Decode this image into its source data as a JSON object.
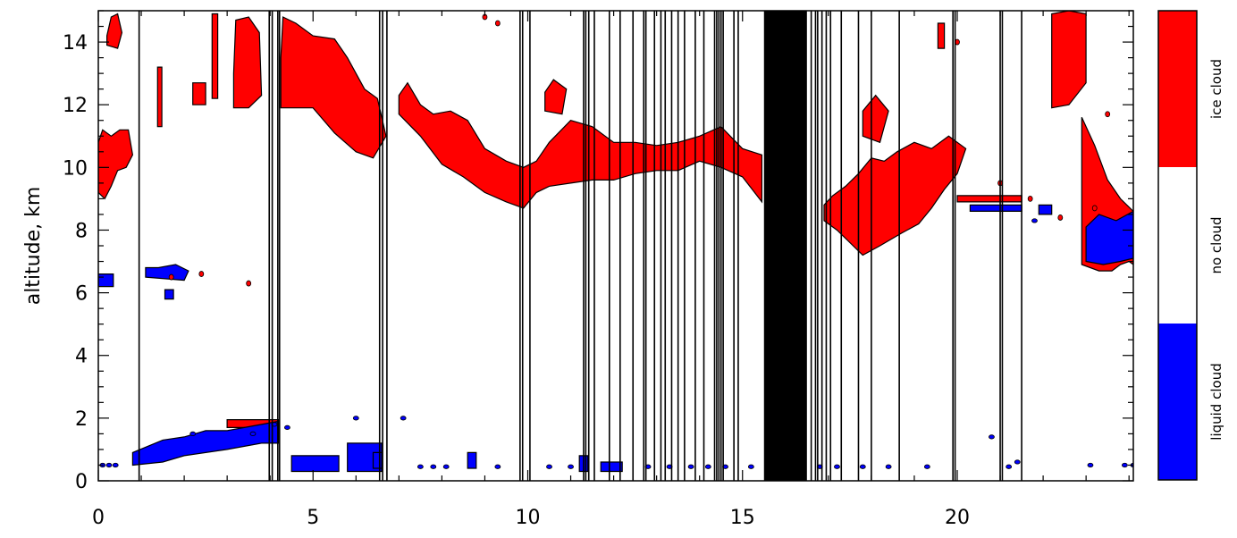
{
  "chart_data": {
    "type": "heatmap",
    "title": "",
    "xlabel": "",
    "ylabel": "altitude, km",
    "xlim": [
      0,
      24.1
    ],
    "ylim": [
      0,
      15
    ],
    "xticks": [
      0,
      5,
      10,
      15,
      20
    ],
    "yticks": [
      0,
      2,
      4,
      6,
      8,
      10,
      12,
      14
    ],
    "categories": [
      "liquid cloud",
      "no cloud",
      "ice cloud"
    ],
    "colors": {
      "liquid": "#0000ff",
      "none": "#ffffff",
      "ice": "#ff0000",
      "outline": "#000000",
      "dropout": "#000000"
    },
    "colorbar": {
      "labels": [
        "liquid cloud",
        "no cloud",
        "ice cloud"
      ]
    },
    "dropout_lines": [
      0.95,
      3.98,
      4.05,
      4.18,
      4.22,
      6.55,
      6.62,
      6.72,
      9.82,
      9.88,
      10.05,
      11.3,
      11.35,
      11.42,
      11.55,
      11.9,
      12.15,
      12.45,
      12.7,
      12.75,
      12.95,
      13.1,
      13.2,
      13.35,
      13.5,
      13.65,
      13.9,
      14.1,
      14.35,
      14.4,
      14.45,
      14.5,
      14.55,
      14.8,
      14.9,
      16.6,
      16.7,
      16.75,
      16.85,
      16.95,
      17.05,
      17.3,
      17.7,
      18.0,
      18.65,
      19.9,
      19.95,
      21.0,
      21.05,
      21.5
    ],
    "dropout_bands": [
      [
        15.5,
        16.5
      ]
    ],
    "ice_regions": [
      {
        "x": [
          0.0,
          0.15,
          0.3,
          0.45,
          0.65,
          0.8,
          0.7,
          0.5,
          0.3,
          0.1,
          0.0
        ],
        "y": [
          9.2,
          9.0,
          9.4,
          9.9,
          10.0,
          10.4,
          11.2,
          11.2,
          11.0,
          11.2,
          10.8
        ]
      },
      {
        "x": [
          0.2,
          0.45,
          0.55,
          0.45,
          0.3,
          0.2
        ],
        "y": [
          13.9,
          13.8,
          14.3,
          14.9,
          14.8,
          14.2
        ]
      },
      {
        "x": [
          1.38,
          1.48,
          1.48,
          1.38
        ],
        "y": [
          11.3,
          11.3,
          13.2,
          13.2
        ]
      },
      {
        "x": [
          2.2,
          2.5,
          2.5,
          2.2
        ],
        "y": [
          12.0,
          12.0,
          12.7,
          12.7
        ]
      },
      {
        "x": [
          2.65,
          2.78,
          2.78,
          2.65
        ],
        "y": [
          12.2,
          12.2,
          14.9,
          14.9
        ]
      },
      {
        "x": [
          3.15,
          3.5,
          3.8,
          3.75,
          3.5,
          3.2,
          3.15
        ],
        "y": [
          11.9,
          11.9,
          12.3,
          14.3,
          14.8,
          14.7,
          13.0
        ]
      },
      {
        "x": [
          4.25,
          5.0,
          5.5,
          6.0,
          6.4,
          6.7,
          6.5,
          6.2,
          5.8,
          5.5,
          5.0,
          4.6,
          4.3,
          4.25
        ],
        "y": [
          11.9,
          11.9,
          11.1,
          10.5,
          10.3,
          11.0,
          12.2,
          12.5,
          13.5,
          14.1,
          14.2,
          14.6,
          14.8,
          13.5
        ]
      },
      {
        "x": [
          7.0,
          7.5,
          8.0,
          8.5,
          9.0,
          9.5,
          9.9,
          10.2,
          10.5,
          11.0,
          11.5,
          12.0,
          12.5,
          13.0,
          13.5,
          14.0,
          14.5,
          15.0,
          15.45,
          15.45,
          15.0,
          14.5,
          14.0,
          13.5,
          13.0,
          12.5,
          12.0,
          11.5,
          11.0,
          10.5,
          10.2,
          9.9,
          9.5,
          9.0,
          8.6,
          8.2,
          7.8,
          7.5,
          7.2,
          7.0
        ],
        "y": [
          11.7,
          11.0,
          10.1,
          9.7,
          9.2,
          8.9,
          8.7,
          9.2,
          9.4,
          9.5,
          9.6,
          9.6,
          9.8,
          9.9,
          9.9,
          10.2,
          10.0,
          9.7,
          8.9,
          10.4,
          10.6,
          11.3,
          11.0,
          10.8,
          10.7,
          10.8,
          10.8,
          11.3,
          11.5,
          10.8,
          10.2,
          10.0,
          10.2,
          10.6,
          11.5,
          11.8,
          11.7,
          12.0,
          12.7,
          12.3
        ]
      },
      {
        "x": [
          10.4,
          10.8,
          10.9,
          10.6,
          10.4
        ],
        "y": [
          11.8,
          11.7,
          12.5,
          12.8,
          12.4
        ]
      },
      {
        "x": [
          16.9,
          17.2,
          17.5,
          17.8,
          18.2,
          18.7,
          19.1,
          19.4,
          19.7,
          20.0,
          20.2,
          19.8,
          19.4,
          19.0,
          18.6,
          18.3,
          18.0,
          17.7,
          17.4,
          17.1,
          16.9
        ],
        "y": [
          8.3,
          8.0,
          7.6,
          7.2,
          7.5,
          7.9,
          8.2,
          8.7,
          9.3,
          9.8,
          10.6,
          11.0,
          10.6,
          10.8,
          10.5,
          10.2,
          10.3,
          9.8,
          9.4,
          9.1,
          8.8
        ]
      },
      {
        "x": [
          17.8,
          18.2,
          18.4,
          18.1,
          17.8
        ],
        "y": [
          11.0,
          10.8,
          11.8,
          12.3,
          11.8
        ]
      },
      {
        "x": [
          19.55,
          19.7,
          19.7,
          19.55
        ],
        "y": [
          13.8,
          13.8,
          14.6,
          14.6
        ]
      },
      {
        "x": [
          20.0,
          21.5,
          21.5,
          20.0
        ],
        "y": [
          8.9,
          8.9,
          9.1,
          9.1
        ]
      },
      {
        "x": [
          22.2,
          22.6,
          23.0,
          23.0,
          22.6,
          22.2
        ],
        "y": [
          11.9,
          12.0,
          12.7,
          14.9,
          15.0,
          14.9
        ]
      },
      {
        "x": [
          22.9,
          23.3,
          23.6,
          23.8,
          24.0,
          24.1,
          24.1,
          23.8,
          23.5,
          23.2,
          22.9
        ],
        "y": [
          6.9,
          6.7,
          6.7,
          6.9,
          7.0,
          6.9,
          8.6,
          9.0,
          9.6,
          10.7,
          11.6
        ]
      },
      {
        "x": [
          3.0,
          4.2,
          4.2,
          3.0
        ],
        "y": [
          1.7,
          1.7,
          1.95,
          1.95
        ]
      }
    ],
    "liquid_regions": [
      {
        "x": [
          0.0,
          0.35,
          0.35,
          0.0
        ],
        "y": [
          6.2,
          6.2,
          6.6,
          6.6
        ]
      },
      {
        "x": [
          1.1,
          2.0,
          2.1,
          1.8,
          1.4,
          1.1
        ],
        "y": [
          6.5,
          6.4,
          6.7,
          6.9,
          6.8,
          6.8
        ]
      },
      {
        "x": [
          1.55,
          1.75,
          1.75,
          1.55
        ],
        "y": [
          5.8,
          5.8,
          6.1,
          6.1
        ]
      },
      {
        "x": [
          23.0,
          23.4,
          23.8,
          24.1,
          24.1,
          23.7,
          23.3,
          23.0
        ],
        "y": [
          7.0,
          6.9,
          7.0,
          7.1,
          8.6,
          8.3,
          8.5,
          8.1
        ]
      },
      {
        "x": [
          20.3,
          21.5,
          21.5,
          20.3
        ],
        "y": [
          8.6,
          8.6,
          8.8,
          8.8
        ]
      },
      {
        "x": [
          21.9,
          22.2,
          22.2,
          21.9
        ],
        "y": [
          8.5,
          8.5,
          8.8,
          8.8
        ]
      },
      {
        "x": [
          0.8,
          1.5,
          2.0,
          2.5,
          3.0,
          3.4,
          3.8,
          4.2,
          4.2,
          3.8,
          3.4,
          3.0,
          2.5,
          2.0,
          1.5,
          0.8
        ],
        "y": [
          0.5,
          0.6,
          0.8,
          0.9,
          1.0,
          1.1,
          1.2,
          1.2,
          1.9,
          1.8,
          1.7,
          1.6,
          1.6,
          1.4,
          1.3,
          0.9
        ]
      },
      {
        "x": [
          4.5,
          5.6,
          5.6,
          4.5
        ],
        "y": [
          0.3,
          0.3,
          0.8,
          0.8
        ]
      },
      {
        "x": [
          5.8,
          6.6,
          6.6,
          5.8
        ],
        "y": [
          0.3,
          0.3,
          1.2,
          1.2
        ]
      },
      {
        "x": [
          6.4,
          6.6,
          6.6,
          6.4
        ],
        "y": [
          0.4,
          0.4,
          0.9,
          0.9
        ]
      },
      {
        "x": [
          8.6,
          8.8,
          8.8,
          8.6
        ],
        "y": [
          0.4,
          0.4,
          0.9,
          0.9
        ]
      },
      {
        "x": [
          11.2,
          11.4,
          11.4,
          11.2
        ],
        "y": [
          0.3,
          0.3,
          0.8,
          0.8
        ]
      },
      {
        "x": [
          11.7,
          12.2,
          12.2,
          11.7
        ],
        "y": [
          0.3,
          0.3,
          0.6,
          0.6
        ]
      }
    ],
    "speckles_liquid": [
      [
        0.1,
        0.5
      ],
      [
        0.25,
        0.5
      ],
      [
        0.4,
        0.5
      ],
      [
        6.0,
        2.0
      ],
      [
        7.1,
        2.0
      ],
      [
        2.2,
        1.5
      ],
      [
        3.6,
        1.5
      ],
      [
        4.1,
        1.8
      ],
      [
        4.4,
        1.7
      ],
      [
        7.5,
        0.45
      ],
      [
        7.8,
        0.45
      ],
      [
        8.1,
        0.45
      ],
      [
        9.3,
        0.45
      ],
      [
        10.5,
        0.45
      ],
      [
        11.0,
        0.45
      ],
      [
        12.8,
        0.45
      ],
      [
        13.3,
        0.45
      ],
      [
        13.8,
        0.45
      ],
      [
        14.2,
        0.45
      ],
      [
        14.6,
        0.45
      ],
      [
        15.2,
        0.45
      ],
      [
        16.8,
        0.45
      ],
      [
        17.2,
        0.45
      ],
      [
        17.8,
        0.45
      ],
      [
        18.4,
        0.45
      ],
      [
        19.3,
        0.45
      ],
      [
        21.2,
        0.45
      ],
      [
        21.4,
        0.6
      ],
      [
        23.9,
        0.5
      ],
      [
        24.1,
        0.5
      ],
      [
        20.8,
        1.4
      ],
      [
        21.8,
        8.3
      ],
      [
        23.1,
        0.5
      ]
    ],
    "speckles_ice": [
      [
        1.7,
        6.5
      ],
      [
        2.4,
        6.6
      ],
      [
        3.5,
        6.3
      ],
      [
        9.0,
        14.8
      ],
      [
        9.3,
        14.6
      ],
      [
        20.0,
        14.0
      ],
      [
        21.0,
        9.5
      ],
      [
        22.4,
        8.4
      ],
      [
        23.2,
        8.7
      ],
      [
        23.5,
        11.7
      ],
      [
        21.7,
        9.0
      ]
    ]
  }
}
